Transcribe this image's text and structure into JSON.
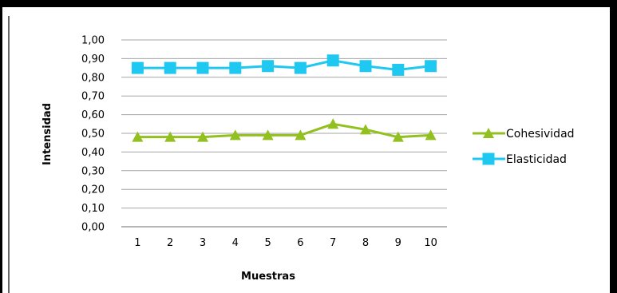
{
  "chart_data": {
    "type": "line",
    "title": "",
    "xlabel": "Muestras",
    "ylabel": "Intensidad",
    "categories": [
      "1",
      "2",
      "3",
      "4",
      "5",
      "6",
      "7",
      "8",
      "9",
      "10"
    ],
    "ylim": [
      0,
      1
    ],
    "yticks": [
      "0,00",
      "0,10",
      "0,20",
      "0,30",
      "0,40",
      "0,50",
      "0,60",
      "0,70",
      "0,80",
      "0,90",
      "1,00"
    ],
    "grid": true,
    "legend_position": "right",
    "series": [
      {
        "name": "Cohesividad",
        "values": [
          0.48,
          0.48,
          0.48,
          0.49,
          0.49,
          0.49,
          0.55,
          0.52,
          0.48,
          0.49
        ],
        "color": "#92c01f",
        "marker": "triangle"
      },
      {
        "name": "Elasticidad",
        "values": [
          0.85,
          0.85,
          0.85,
          0.85,
          0.86,
          0.85,
          0.89,
          0.86,
          0.84,
          0.86
        ],
        "color": "#1ec8f0",
        "marker": "square"
      }
    ]
  }
}
